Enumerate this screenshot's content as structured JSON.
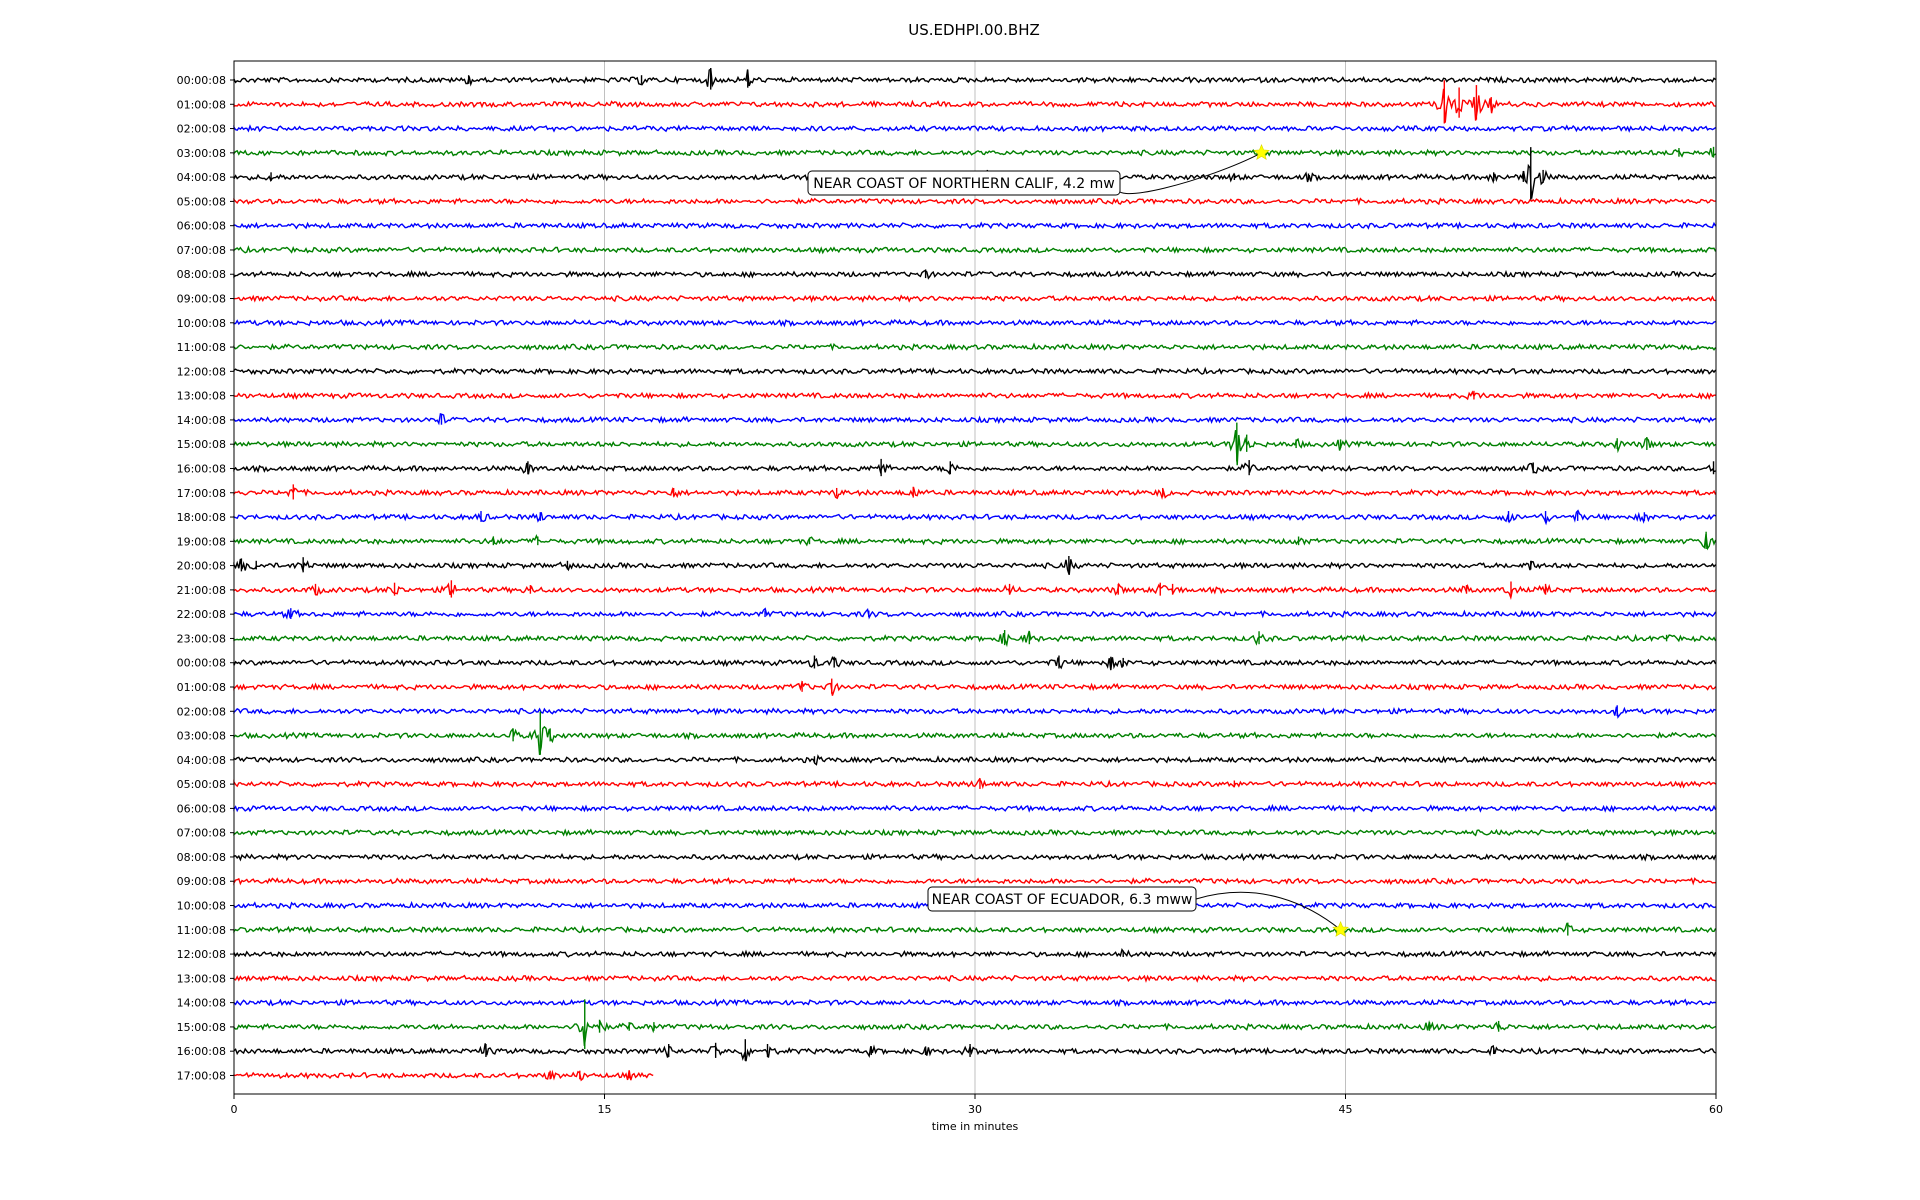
{
  "chart_data": {
    "type": "line",
    "title": "US.EDHPI.00.BHZ",
    "xlabel": "time in minutes",
    "ylabel": "",
    "xlim": [
      0,
      60
    ],
    "xticks": [
      "0",
      "15",
      "30",
      "45",
      "60"
    ],
    "grid": "vertical lines at 15, 30, 45",
    "colors": [
      "#000000",
      "#ff0000",
      "#0000ff",
      "#008000"
    ],
    "traces": [
      {
        "label": "00:00:08",
        "events": [
          [
            9.5,
            0.4
          ],
          [
            16.5,
            0.4
          ],
          [
            19.3,
            1.0
          ],
          [
            20.8,
            0.8
          ]
        ]
      },
      {
        "label": "01:00:08",
        "events": [
          [
            49.0,
            2.0
          ],
          [
            49.6,
            1.4
          ],
          [
            50.3,
            1.6
          ],
          [
            50.9,
            0.6
          ]
        ]
      },
      {
        "label": "02:00:08",
        "events": []
      },
      {
        "label": "03:00:08",
        "events": [
          [
            58.5,
            0.4
          ],
          [
            59.9,
            0.5
          ]
        ]
      },
      {
        "label": "04:00:08",
        "events": [
          [
            1.5,
            0.4
          ],
          [
            30.5,
            0.6
          ],
          [
            33.0,
            0.5
          ],
          [
            40.5,
            0.3
          ],
          [
            43.5,
            0.3
          ],
          [
            51.0,
            0.4
          ],
          [
            52.2,
            0.5
          ],
          [
            52.5,
            2.5
          ],
          [
            53.0,
            0.6
          ]
        ]
      },
      {
        "label": "05:00:08",
        "events": []
      },
      {
        "label": "06:00:08",
        "events": []
      },
      {
        "label": "07:00:08",
        "events": []
      },
      {
        "label": "08:00:08",
        "events": [
          [
            28.0,
            0.4
          ]
        ]
      },
      {
        "label": "09:00:08",
        "events": []
      },
      {
        "label": "10:00:08",
        "events": []
      },
      {
        "label": "11:00:08",
        "events": []
      },
      {
        "label": "12:00:08",
        "events": []
      },
      {
        "label": "13:00:08",
        "events": [
          [
            50.2,
            0.4
          ]
        ]
      },
      {
        "label": "14:00:08",
        "events": [
          [
            8.4,
            0.5
          ]
        ]
      },
      {
        "label": "15:00:08",
        "events": [
          [
            40.6,
            1.8
          ],
          [
            41.0,
            0.8
          ],
          [
            43.0,
            0.4
          ],
          [
            44.8,
            0.4
          ],
          [
            56.0,
            0.5
          ],
          [
            57.2,
            0.6
          ]
        ]
      },
      {
        "label": "16:00:08",
        "events": [
          [
            11.9,
            0.6
          ],
          [
            26.2,
            0.8
          ],
          [
            29.0,
            0.6
          ],
          [
            41.1,
            0.7
          ],
          [
            52.6,
            0.5
          ],
          [
            59.9,
            0.6
          ]
        ]
      },
      {
        "label": "17:00:08",
        "events": [
          [
            2.4,
            0.7
          ],
          [
            17.8,
            0.4
          ],
          [
            24.4,
            0.4
          ],
          [
            27.5,
            0.5
          ],
          [
            37.6,
            0.4
          ]
        ]
      },
      {
        "label": "18:00:08",
        "events": [
          [
            10.0,
            0.5
          ],
          [
            12.4,
            0.4
          ],
          [
            51.6,
            0.5
          ],
          [
            53.1,
            0.5
          ],
          [
            54.4,
            0.4
          ],
          [
            57.1,
            0.4
          ]
        ]
      },
      {
        "label": "19:00:08",
        "events": [
          [
            10.5,
            0.4
          ],
          [
            12.3,
            0.4
          ],
          [
            23.3,
            0.3
          ],
          [
            43.1,
            0.4
          ],
          [
            59.6,
            0.8
          ]
        ]
      },
      {
        "label": "20:00:08",
        "events": [
          [
            0.3,
            0.6
          ],
          [
            0.9,
            0.4
          ],
          [
            2.8,
            0.7
          ],
          [
            13.5,
            0.4
          ],
          [
            33.8,
            0.8
          ],
          [
            52.5,
            0.4
          ]
        ]
      },
      {
        "label": "21:00:08",
        "events": [
          [
            3.3,
            0.5
          ],
          [
            6.5,
            0.6
          ],
          [
            8.8,
            0.8
          ],
          [
            12.0,
            0.4
          ],
          [
            31.4,
            0.5
          ],
          [
            35.8,
            0.5
          ],
          [
            37.5,
            0.6
          ],
          [
            38.0,
            0.5
          ],
          [
            49.9,
            0.4
          ],
          [
            51.7,
            0.7
          ],
          [
            53.1,
            0.5
          ]
        ]
      },
      {
        "label": "22:00:08",
        "events": [
          [
            2.3,
            0.5
          ],
          [
            21.5,
            0.3
          ],
          [
            25.7,
            0.3
          ]
        ]
      },
      {
        "label": "23:00:08",
        "events": [
          [
            31.2,
            0.7
          ],
          [
            32.2,
            0.6
          ],
          [
            41.5,
            0.6
          ],
          [
            58.0,
            0.3
          ]
        ]
      },
      {
        "label": "00:00:08",
        "events": [
          [
            23.5,
            0.6
          ],
          [
            24.3,
            0.5
          ],
          [
            33.4,
            0.6
          ],
          [
            35.5,
            0.5
          ],
          [
            36.0,
            0.4
          ]
        ]
      },
      {
        "label": "01:00:08",
        "events": [
          [
            23.0,
            0.5
          ],
          [
            24.2,
            0.7
          ]
        ]
      },
      {
        "label": "02:00:08",
        "events": [
          [
            56.0,
            0.5
          ]
        ]
      },
      {
        "label": "03:00:08",
        "events": [
          [
            11.3,
            0.6
          ],
          [
            12.4,
            2.0
          ],
          [
            12.8,
            0.6
          ]
        ]
      },
      {
        "label": "04:00:08",
        "events": [
          [
            23.5,
            0.3
          ]
        ]
      },
      {
        "label": "05:00:08",
        "events": [
          [
            30.2,
            0.5
          ],
          [
            40.5,
            0.3
          ]
        ]
      },
      {
        "label": "06:00:08",
        "events": []
      },
      {
        "label": "07:00:08",
        "events": []
      },
      {
        "label": "08:00:08",
        "events": []
      },
      {
        "label": "09:00:08",
        "events": []
      },
      {
        "label": "10:00:08",
        "events": []
      },
      {
        "label": "11:00:08",
        "events": [
          [
            54.0,
            0.6
          ]
        ]
      },
      {
        "label": "12:00:08",
        "events": [
          [
            36.0,
            0.3
          ]
        ]
      },
      {
        "label": "13:00:08",
        "events": []
      },
      {
        "label": "14:00:08",
        "events": []
      },
      {
        "label": "15:00:08",
        "events": [
          [
            14.2,
            2.3
          ],
          [
            14.8,
            0.6
          ],
          [
            16.0,
            0.4
          ],
          [
            17.0,
            0.4
          ],
          [
            48.4,
            0.4
          ],
          [
            51.2,
            0.5
          ]
        ]
      },
      {
        "label": "16:00:08",
        "events": [
          [
            10.2,
            0.6
          ],
          [
            17.6,
            0.6
          ],
          [
            19.5,
            0.7
          ],
          [
            20.7,
            1.0
          ],
          [
            21.6,
            0.6
          ],
          [
            25.8,
            0.4
          ],
          [
            28.0,
            0.4
          ],
          [
            29.8,
            0.6
          ],
          [
            51.0,
            0.3
          ]
        ]
      },
      {
        "label": "17:00:08",
        "end": 17.0,
        "events": [
          [
            12.8,
            0.4
          ],
          [
            14.0,
            0.4
          ],
          [
            16.0,
            0.3
          ]
        ]
      }
    ],
    "annotations": [
      {
        "text": "NEAR COAST OF NORTHERN CALIF, 4.2 mw",
        "trace": 3,
        "time": 41.6
      },
      {
        "text": "NEAR COAST OF ECUADOR, 6.3 mww",
        "trace": 35,
        "time": 44.8
      }
    ]
  }
}
